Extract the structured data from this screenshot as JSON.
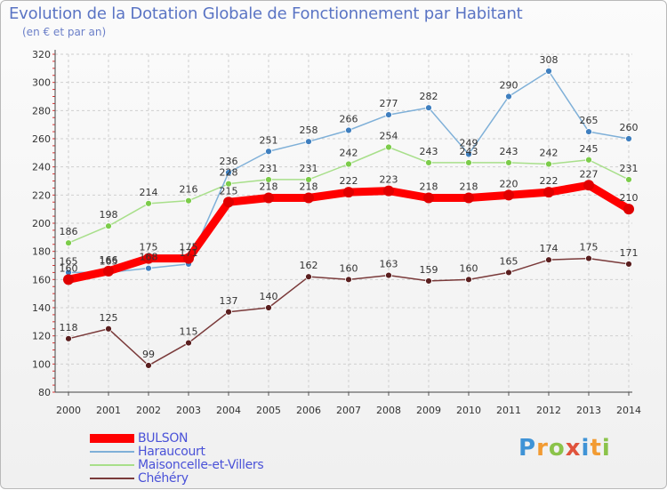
{
  "title": "Evolution de la Dotation Globale de Fonctionnement par Habitant",
  "subtitle": "(en € et par an)",
  "logo_text": "Proxiti",
  "chart_data": {
    "type": "line",
    "title": "Evolution de la Dotation Globale de Fonctionnement par Habitant",
    "subtitle": "(en € et par an)",
    "x": [
      "2000",
      "2001",
      "2002",
      "2003",
      "2004",
      "2005",
      "2006",
      "2007",
      "2008",
      "2009",
      "2010",
      "2011",
      "2012",
      "2013",
      "2014"
    ],
    "ylim": [
      80,
      320
    ],
    "yticks": [
      80,
      100,
      120,
      140,
      160,
      180,
      200,
      220,
      240,
      260,
      280,
      300,
      320
    ],
    "grid": true,
    "legend_position": "bottom-left",
    "series": [
      {
        "name": "BULSON",
        "color": "#ff0000",
        "marker": "#e00000",
        "values": [
          160,
          166,
          175,
          175,
          215,
          218,
          218,
          222,
          223,
          218,
          218,
          220,
          222,
          227,
          210
        ]
      },
      {
        "name": "Haraucourt",
        "color": "#7fb0d8",
        "marker": "#3f7fbf",
        "values": [
          165,
          165,
          168,
          171,
          236,
          251,
          258,
          266,
          277,
          282,
          249,
          290,
          308,
          265,
          260
        ]
      },
      {
        "name": "Maisoncelle-et-Villers",
        "color": "#a8df8a",
        "marker": "#7ccc4a",
        "values": [
          186,
          198,
          214,
          216,
          228,
          231,
          231,
          242,
          254,
          243,
          243,
          243,
          242,
          245,
          231
        ]
      },
      {
        "name": "Chéhéry",
        "color": "#7a3a3a",
        "marker": "#5a1f1f",
        "values": [
          118,
          125,
          99,
          115,
          137,
          140,
          162,
          160,
          163,
          159,
          160,
          165,
          174,
          175,
          171
        ]
      }
    ]
  }
}
